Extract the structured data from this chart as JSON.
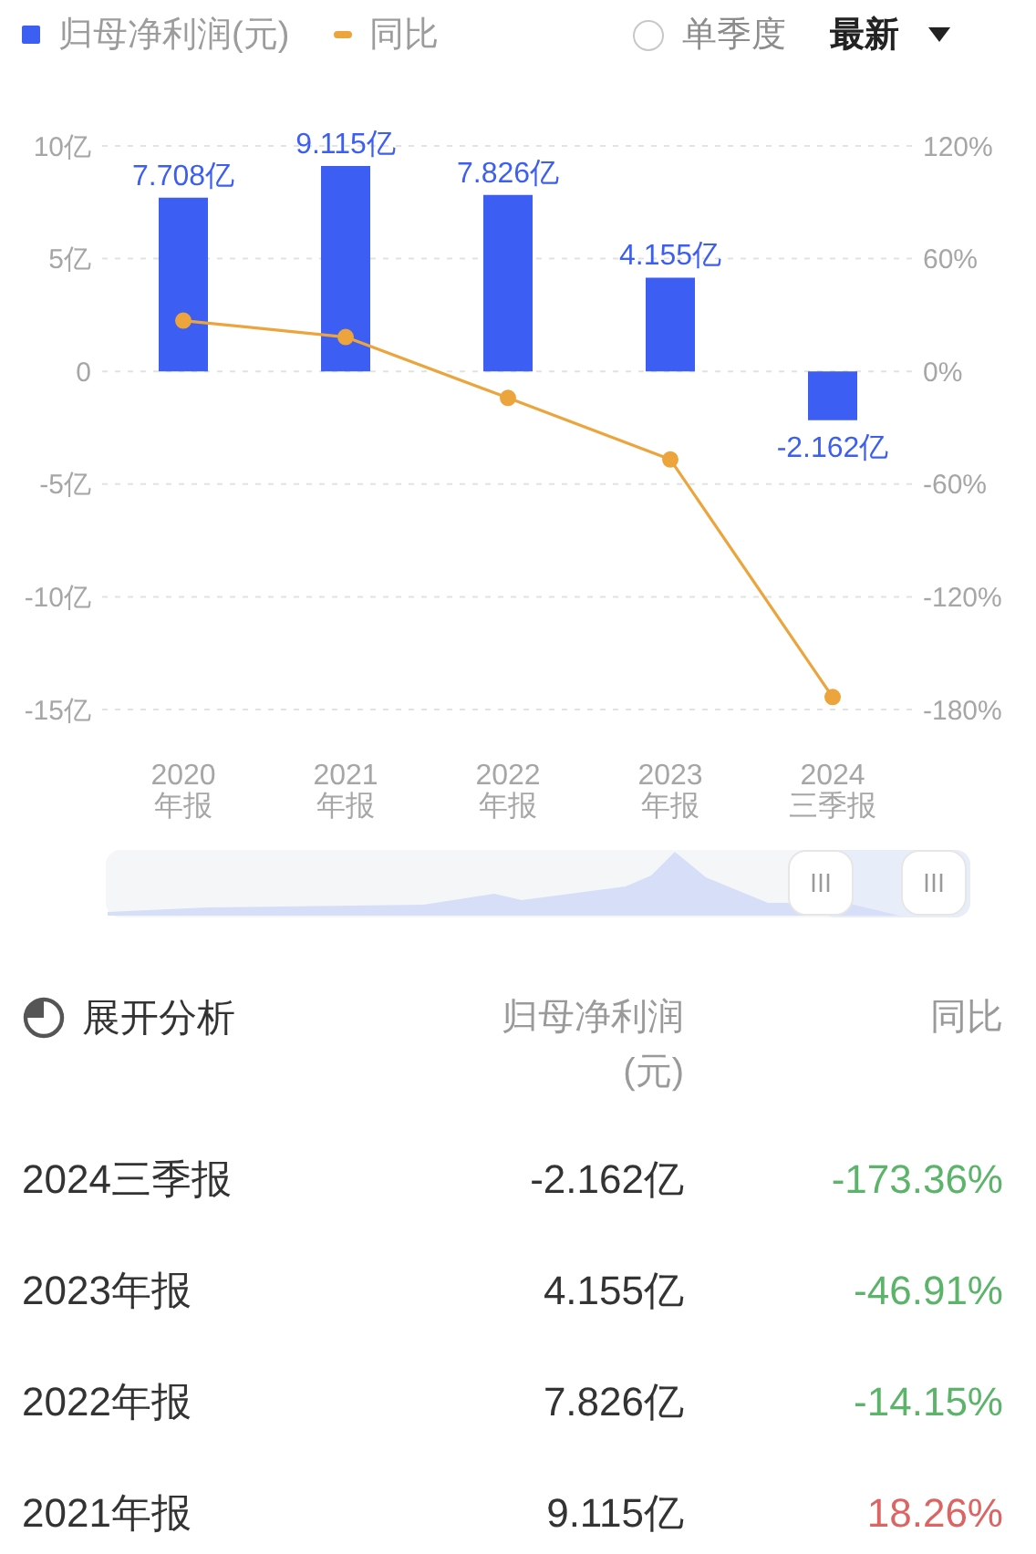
{
  "chart_data": {
    "type": "bar",
    "categories": [
      "2020\n年报",
      "2021\n年报",
      "2022\n年报",
      "2023\n年报",
      "2024\n三季报"
    ],
    "series": [
      {
        "name": "归母净利润(元)",
        "color": "#3c5ef3",
        "values": [
          7.708,
          9.115,
          7.826,
          4.155,
          -2.162
        ],
        "value_labels": [
          "7.708亿",
          "9.115亿",
          "7.826亿",
          "4.155亿",
          "-2.162亿"
        ]
      },
      {
        "name": "同比",
        "type": "line",
        "axis": "y2",
        "color": "#eca43c",
        "values": [
          27,
          18.26,
          -14.15,
          -46.91,
          -173.36
        ]
      }
    ],
    "ylim": [
      -15,
      10
    ],
    "yticks": [
      {
        "value": -15,
        "label": "-15亿"
      },
      {
        "value": -10,
        "label": "-10亿"
      },
      {
        "value": -5,
        "label": "-5亿"
      },
      0,
      {
        "value": 5,
        "label": "5亿"
      },
      {
        "value": 10,
        "label": "10亿"
      }
    ],
    "y2lim": [
      -180,
      120
    ],
    "y2ticks": [
      {
        "value": -180,
        "label": "-180%"
      },
      {
        "value": -120,
        "label": "-120%"
      },
      {
        "value": -60,
        "label": "-60%"
      },
      {
        "value": 0,
        "label": "0%"
      },
      {
        "value": 60,
        "label": "60%"
      },
      {
        "value": 120,
        "label": "120%"
      }
    ],
    "grid": "y",
    "legend": "top left",
    "marker": "circle",
    "annotations": [
      "单季度",
      "最新",
      "展开分析",
      "-173.36%",
      "-46.91%",
      "-14.15%",
      "18.26%"
    ]
  }
}
